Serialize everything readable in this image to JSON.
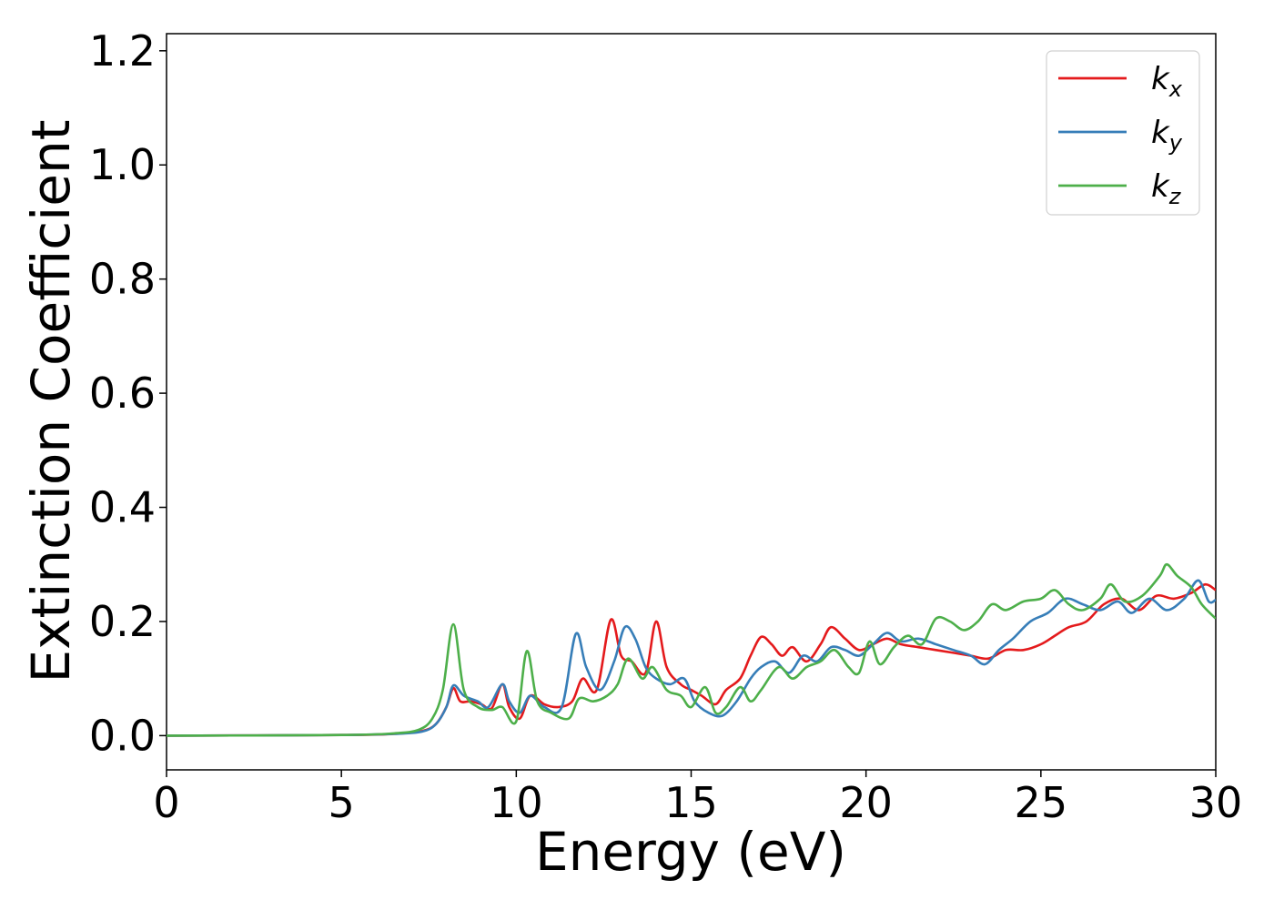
{
  "chart_data": {
    "type": "line",
    "title": "",
    "xlabel": "Energy (eV)",
    "ylabel": "Extinction Coefficient",
    "xlim": [
      0,
      30
    ],
    "ylim": [
      -0.06,
      1.23
    ],
    "x_ticks": [
      0,
      5,
      10,
      15,
      20,
      25,
      30
    ],
    "y_ticks": [
      0.0,
      0.2,
      0.4,
      0.6,
      0.8,
      1.0,
      1.2
    ],
    "x_tick_labels": [
      "0",
      "5",
      "10",
      "15",
      "20",
      "25",
      "30"
    ],
    "y_tick_labels": [
      "0.0",
      "0.2",
      "0.4",
      "0.6",
      "0.8",
      "1.0",
      "1.2"
    ],
    "grid": false,
    "legend_position": "top-right",
    "series": [
      {
        "name": "k_x",
        "legend_main": "k",
        "legend_sub": "x",
        "color": "#e41a1c",
        "points": [
          [
            0,
            0
          ],
          [
            5,
            0.001
          ],
          [
            6.5,
            0.003
          ],
          [
            7.3,
            0.008
          ],
          [
            7.7,
            0.02
          ],
          [
            8.0,
            0.05
          ],
          [
            8.2,
            0.083
          ],
          [
            8.4,
            0.06
          ],
          [
            8.7,
            0.06
          ],
          [
            9.0,
            0.055
          ],
          [
            9.3,
            0.048
          ],
          [
            9.6,
            0.09
          ],
          [
            9.8,
            0.05
          ],
          [
            10.1,
            0.03
          ],
          [
            10.4,
            0.07
          ],
          [
            10.8,
            0.055
          ],
          [
            11.2,
            0.05
          ],
          [
            11.6,
            0.06
          ],
          [
            11.9,
            0.1
          ],
          [
            12.3,
            0.08
          ],
          [
            12.7,
            0.203
          ],
          [
            13.0,
            0.14
          ],
          [
            13.3,
            0.13
          ],
          [
            13.7,
            0.11
          ],
          [
            14.0,
            0.2
          ],
          [
            14.3,
            0.12
          ],
          [
            14.7,
            0.09
          ],
          [
            15.0,
            0.08
          ],
          [
            15.3,
            0.07
          ],
          [
            15.7,
            0.055
          ],
          [
            16.0,
            0.08
          ],
          [
            16.4,
            0.1
          ],
          [
            16.7,
            0.14
          ],
          [
            17.0,
            0.173
          ],
          [
            17.3,
            0.16
          ],
          [
            17.6,
            0.14
          ],
          [
            17.9,
            0.155
          ],
          [
            18.3,
            0.13
          ],
          [
            18.7,
            0.16
          ],
          [
            19.0,
            0.19
          ],
          [
            19.4,
            0.17
          ],
          [
            19.8,
            0.15
          ],
          [
            20.2,
            0.16
          ],
          [
            20.6,
            0.17
          ],
          [
            21.0,
            0.16
          ],
          [
            21.5,
            0.155
          ],
          [
            22.0,
            0.15
          ],
          [
            22.5,
            0.145
          ],
          [
            23.0,
            0.14
          ],
          [
            23.5,
            0.135
          ],
          [
            24.0,
            0.15
          ],
          [
            24.5,
            0.15
          ],
          [
            25.0,
            0.16
          ],
          [
            25.4,
            0.175
          ],
          [
            25.8,
            0.19
          ],
          [
            26.3,
            0.2
          ],
          [
            26.8,
            0.23
          ],
          [
            27.3,
            0.24
          ],
          [
            27.8,
            0.22
          ],
          [
            28.3,
            0.245
          ],
          [
            28.8,
            0.24
          ],
          [
            29.3,
            0.25
          ],
          [
            29.7,
            0.265
          ],
          [
            30.0,
            0.255
          ]
        ]
      },
      {
        "name": "k_y",
        "legend_main": "k",
        "legend_sub": "y",
        "color": "#377eb8",
        "points": [
          [
            0,
            0
          ],
          [
            5,
            0.001
          ],
          [
            6.5,
            0.003
          ],
          [
            7.3,
            0.007
          ],
          [
            7.7,
            0.02
          ],
          [
            8.0,
            0.05
          ],
          [
            8.2,
            0.088
          ],
          [
            8.5,
            0.07
          ],
          [
            8.9,
            0.06
          ],
          [
            9.2,
            0.05
          ],
          [
            9.6,
            0.09
          ],
          [
            9.8,
            0.06
          ],
          [
            10.1,
            0.04
          ],
          [
            10.4,
            0.07
          ],
          [
            10.8,
            0.05
          ],
          [
            11.3,
            0.05
          ],
          [
            11.7,
            0.178
          ],
          [
            12.0,
            0.12
          ],
          [
            12.4,
            0.08
          ],
          [
            12.8,
            0.13
          ],
          [
            13.1,
            0.19
          ],
          [
            13.4,
            0.17
          ],
          [
            13.7,
            0.12
          ],
          [
            14.0,
            0.1
          ],
          [
            14.4,
            0.09
          ],
          [
            14.8,
            0.1
          ],
          [
            15.1,
            0.06
          ],
          [
            15.5,
            0.04
          ],
          [
            15.9,
            0.035
          ],
          [
            16.3,
            0.06
          ],
          [
            16.7,
            0.1
          ],
          [
            17.0,
            0.12
          ],
          [
            17.4,
            0.13
          ],
          [
            17.8,
            0.11
          ],
          [
            18.2,
            0.14
          ],
          [
            18.6,
            0.13
          ],
          [
            19.0,
            0.155
          ],
          [
            19.4,
            0.15
          ],
          [
            19.8,
            0.14
          ],
          [
            20.2,
            0.16
          ],
          [
            20.6,
            0.18
          ],
          [
            21.0,
            0.165
          ],
          [
            21.5,
            0.17
          ],
          [
            22.0,
            0.16
          ],
          [
            22.5,
            0.15
          ],
          [
            23.0,
            0.14
          ],
          [
            23.4,
            0.125
          ],
          [
            23.8,
            0.15
          ],
          [
            24.2,
            0.17
          ],
          [
            24.7,
            0.2
          ],
          [
            25.2,
            0.215
          ],
          [
            25.7,
            0.24
          ],
          [
            26.2,
            0.23
          ],
          [
            26.7,
            0.22
          ],
          [
            27.2,
            0.235
          ],
          [
            27.6,
            0.215
          ],
          [
            28.1,
            0.24
          ],
          [
            28.6,
            0.22
          ],
          [
            29.1,
            0.24
          ],
          [
            29.5,
            0.272
          ],
          [
            29.8,
            0.235
          ],
          [
            30.0,
            0.238
          ]
        ]
      },
      {
        "name": "k_z",
        "legend_main": "k",
        "legend_sub": "z",
        "color": "#4daf4a",
        "points": [
          [
            0,
            0
          ],
          [
            5,
            0.001
          ],
          [
            6.5,
            0.004
          ],
          [
            7.2,
            0.01
          ],
          [
            7.6,
            0.03
          ],
          [
            7.9,
            0.08
          ],
          [
            8.2,
            0.195
          ],
          [
            8.5,
            0.08
          ],
          [
            8.9,
            0.05
          ],
          [
            9.3,
            0.045
          ],
          [
            9.6,
            0.05
          ],
          [
            10.0,
            0.025
          ],
          [
            10.3,
            0.148
          ],
          [
            10.6,
            0.06
          ],
          [
            11.0,
            0.04
          ],
          [
            11.5,
            0.03
          ],
          [
            11.8,
            0.065
          ],
          [
            12.2,
            0.06
          ],
          [
            12.6,
            0.07
          ],
          [
            12.9,
            0.09
          ],
          [
            13.2,
            0.135
          ],
          [
            13.6,
            0.1
          ],
          [
            13.9,
            0.12
          ],
          [
            14.3,
            0.08
          ],
          [
            14.7,
            0.07
          ],
          [
            15.0,
            0.05
          ],
          [
            15.4,
            0.085
          ],
          [
            15.7,
            0.04
          ],
          [
            16.0,
            0.05
          ],
          [
            16.4,
            0.085
          ],
          [
            16.7,
            0.06
          ],
          [
            17.0,
            0.08
          ],
          [
            17.5,
            0.12
          ],
          [
            17.9,
            0.1
          ],
          [
            18.3,
            0.12
          ],
          [
            18.7,
            0.13
          ],
          [
            19.1,
            0.15
          ],
          [
            19.5,
            0.12
          ],
          [
            19.8,
            0.11
          ],
          [
            20.1,
            0.165
          ],
          [
            20.4,
            0.125
          ],
          [
            20.8,
            0.155
          ],
          [
            21.2,
            0.175
          ],
          [
            21.6,
            0.16
          ],
          [
            22.0,
            0.205
          ],
          [
            22.4,
            0.2
          ],
          [
            22.8,
            0.185
          ],
          [
            23.2,
            0.2
          ],
          [
            23.6,
            0.23
          ],
          [
            24.0,
            0.22
          ],
          [
            24.5,
            0.235
          ],
          [
            25.0,
            0.24
          ],
          [
            25.4,
            0.255
          ],
          [
            25.8,
            0.23
          ],
          [
            26.2,
            0.22
          ],
          [
            26.7,
            0.24
          ],
          [
            27.0,
            0.265
          ],
          [
            27.4,
            0.235
          ],
          [
            27.9,
            0.245
          ],
          [
            28.4,
            0.28
          ],
          [
            28.6,
            0.3
          ],
          [
            28.9,
            0.28
          ],
          [
            29.3,
            0.26
          ],
          [
            29.6,
            0.23
          ],
          [
            30.0,
            0.205
          ]
        ]
      }
    ]
  }
}
